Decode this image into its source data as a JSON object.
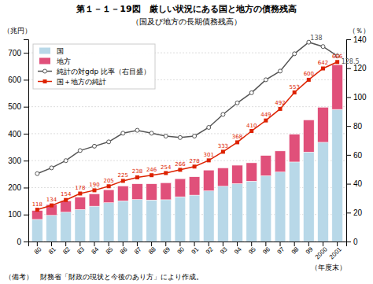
{
  "chart_data": {
    "type": "bar",
    "title": "第１－１－19図　厳しい状況にある国と地方の債務残高",
    "subtitle": "（国及び地方の長期債務残高）",
    "note": "（備考）　財務省「財政の現状と今後のあり方」により作成。",
    "y_label": "（兆円）",
    "y2_label": "（％）",
    "x_label": "（年度末）",
    "categories": [
      "80",
      "81",
      "82",
      "83",
      "84",
      "85",
      "86",
      "87",
      "88",
      "89",
      "90",
      "91",
      "92",
      "93",
      "94",
      "95",
      "96",
      "97",
      "98",
      "99",
      "2000",
      "2001"
    ],
    "stacked": true,
    "grid": true,
    "legend": "upper left",
    "ylim": [
      0,
      750
    ],
    "yticks": [
      0,
      100,
      200,
      300,
      400,
      500,
      600,
      700
    ],
    "y2lim": [
      0,
      140
    ],
    "y2ticks": [
      0,
      20,
      40,
      60,
      80,
      100,
      120,
      140
    ],
    "series": [
      {
        "name": "国",
        "type": "bar",
        "color": "#b8d8e8",
        "values": [
          82,
          97,
          109,
          119,
          131,
          144,
          151,
          156,
          154,
          155,
          166,
          172,
          188,
          205,
          215,
          224,
          244,
          258,
          295,
          332,
          368,
          490
        ]
      },
      {
        "name": "地方",
        "type": "bar",
        "color": "#e0507a",
        "values": [
          33,
          40,
          42,
          46,
          46,
          48,
          55,
          58,
          60,
          63,
          67,
          68,
          77,
          68,
          68,
          68,
          75,
          78,
          103,
          119,
          130,
          166
        ]
      },
      {
        "name": "純計の対gdp 比率（右目盛）",
        "type": "line",
        "axis": "y2",
        "color": "#555555",
        "marker": "circle",
        "values": [
          47,
          51,
          56,
          63,
          66,
          69,
          75,
          77,
          75,
          73,
          72,
          73,
          79,
          88,
          96,
          103,
          112,
          118,
          130,
          138,
          135,
          128.5
        ]
      },
      {
        "name": "国＋地方の純計",
        "type": "line",
        "color": "#dd2200",
        "marker": "square",
        "data_labels": true,
        "values": [
          118,
          134,
          154,
          178,
          190,
          205,
          225,
          238,
          246,
          254,
          266,
          278,
          301,
          333,
          368,
          410,
          449,
          492,
          553,
          600,
          642,
          666
        ]
      }
    ],
    "annotations": [
      {
        "text": "138",
        "x": "99",
        "y": 138,
        "axis": "y2"
      },
      {
        "text": "128.5",
        "x": "2001",
        "y": 128.5,
        "axis": "y2"
      }
    ]
  }
}
